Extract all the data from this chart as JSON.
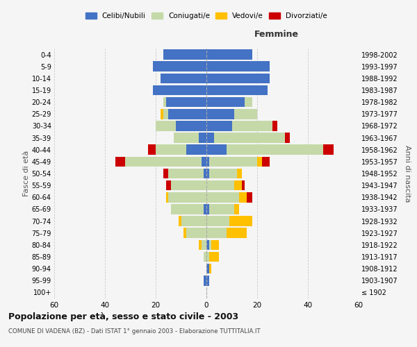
{
  "age_groups": [
    "100+",
    "95-99",
    "90-94",
    "85-89",
    "80-84",
    "75-79",
    "70-74",
    "65-69",
    "60-64",
    "55-59",
    "50-54",
    "45-49",
    "40-44",
    "35-39",
    "30-34",
    "25-29",
    "20-24",
    "15-19",
    "10-14",
    "5-9",
    "0-4"
  ],
  "birth_years": [
    "≤ 1902",
    "1903-1907",
    "1908-1912",
    "1913-1917",
    "1918-1922",
    "1923-1927",
    "1928-1932",
    "1933-1937",
    "1938-1942",
    "1943-1947",
    "1948-1952",
    "1953-1957",
    "1958-1962",
    "1963-1967",
    "1968-1972",
    "1973-1977",
    "1978-1982",
    "1983-1987",
    "1988-1992",
    "1993-1997",
    "1998-2002"
  ],
  "male": {
    "celibi": [
      0,
      1,
      0,
      0,
      0,
      0,
      0,
      1,
      0,
      0,
      1,
      2,
      8,
      3,
      12,
      15,
      16,
      21,
      18,
      21,
      17
    ],
    "coniugati": [
      0,
      0,
      0,
      1,
      2,
      8,
      10,
      13,
      15,
      14,
      14,
      30,
      12,
      10,
      8,
      2,
      1,
      0,
      0,
      0,
      0
    ],
    "vedovi": [
      0,
      0,
      0,
      0,
      1,
      1,
      1,
      0,
      1,
      0,
      0,
      0,
      0,
      0,
      0,
      1,
      0,
      0,
      0,
      0,
      0
    ],
    "divorziati": [
      0,
      0,
      0,
      0,
      0,
      0,
      0,
      0,
      0,
      2,
      2,
      4,
      3,
      0,
      0,
      0,
      0,
      0,
      0,
      0,
      0
    ]
  },
  "female": {
    "nubili": [
      0,
      1,
      1,
      0,
      1,
      0,
      0,
      1,
      0,
      0,
      1,
      1,
      8,
      3,
      10,
      11,
      15,
      24,
      25,
      25,
      18
    ],
    "coniugate": [
      0,
      0,
      0,
      1,
      1,
      8,
      9,
      10,
      13,
      11,
      11,
      19,
      38,
      28,
      16,
      9,
      3,
      0,
      0,
      0,
      0
    ],
    "vedove": [
      0,
      0,
      1,
      4,
      3,
      8,
      9,
      2,
      3,
      3,
      2,
      2,
      0,
      0,
      0,
      0,
      0,
      0,
      0,
      0,
      0
    ],
    "divorziate": [
      0,
      0,
      0,
      0,
      0,
      0,
      0,
      0,
      2,
      1,
      0,
      3,
      4,
      2,
      2,
      0,
      0,
      0,
      0,
      0,
      0
    ]
  },
  "colors": {
    "celibi": "#4472c4",
    "coniugati": "#c5d9a8",
    "vedovi": "#ffc000",
    "divorziati": "#cc0000"
  },
  "xlim": 60,
  "title": "Popolazione per età, sesso e stato civile - 2003",
  "subtitle": "COMUNE DI VADENA (BZ) - Dati ISTAT 1° gennaio 2003 - Elaborazione TUTTITALIA.IT",
  "ylabel_left": "Fasce di età",
  "ylabel_right": "Anni di nascita",
  "xlabel_right": "Femmine",
  "background_color": "#f5f5f5",
  "grid_color": "#cccccc"
}
